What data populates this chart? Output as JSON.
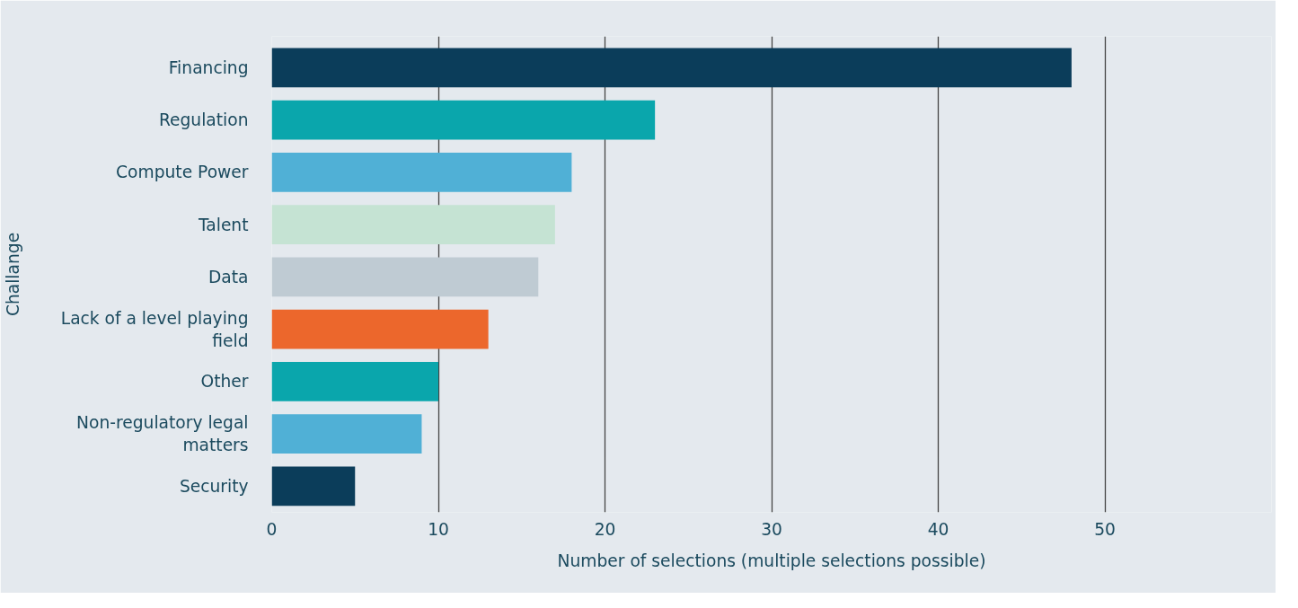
{
  "chart_data": {
    "type": "bar",
    "orientation": "horizontal",
    "xlabel": "Number of selections (multiple selections possible)",
    "ylabel": "Challange",
    "categories": [
      "Financing",
      "Regulation",
      "Compute Power",
      "Talent",
      "Data",
      "Lack of a level playing field",
      "Other",
      "Non-regulatory legal matters",
      "Security"
    ],
    "values": [
      48,
      23,
      18,
      17,
      16,
      13,
      10,
      9,
      5
    ],
    "colors": [
      "#0b3d5a",
      "#0aa6ac",
      "#50b0d6",
      "#c5e3d3",
      "#bfcbd3",
      "#ec672c",
      "#0aa6ac",
      "#50b0d6",
      "#0b3d5a"
    ],
    "xlim": [
      0,
      60
    ],
    "xticks": [
      0,
      10,
      20,
      30,
      40,
      50
    ],
    "grid": "x"
  }
}
